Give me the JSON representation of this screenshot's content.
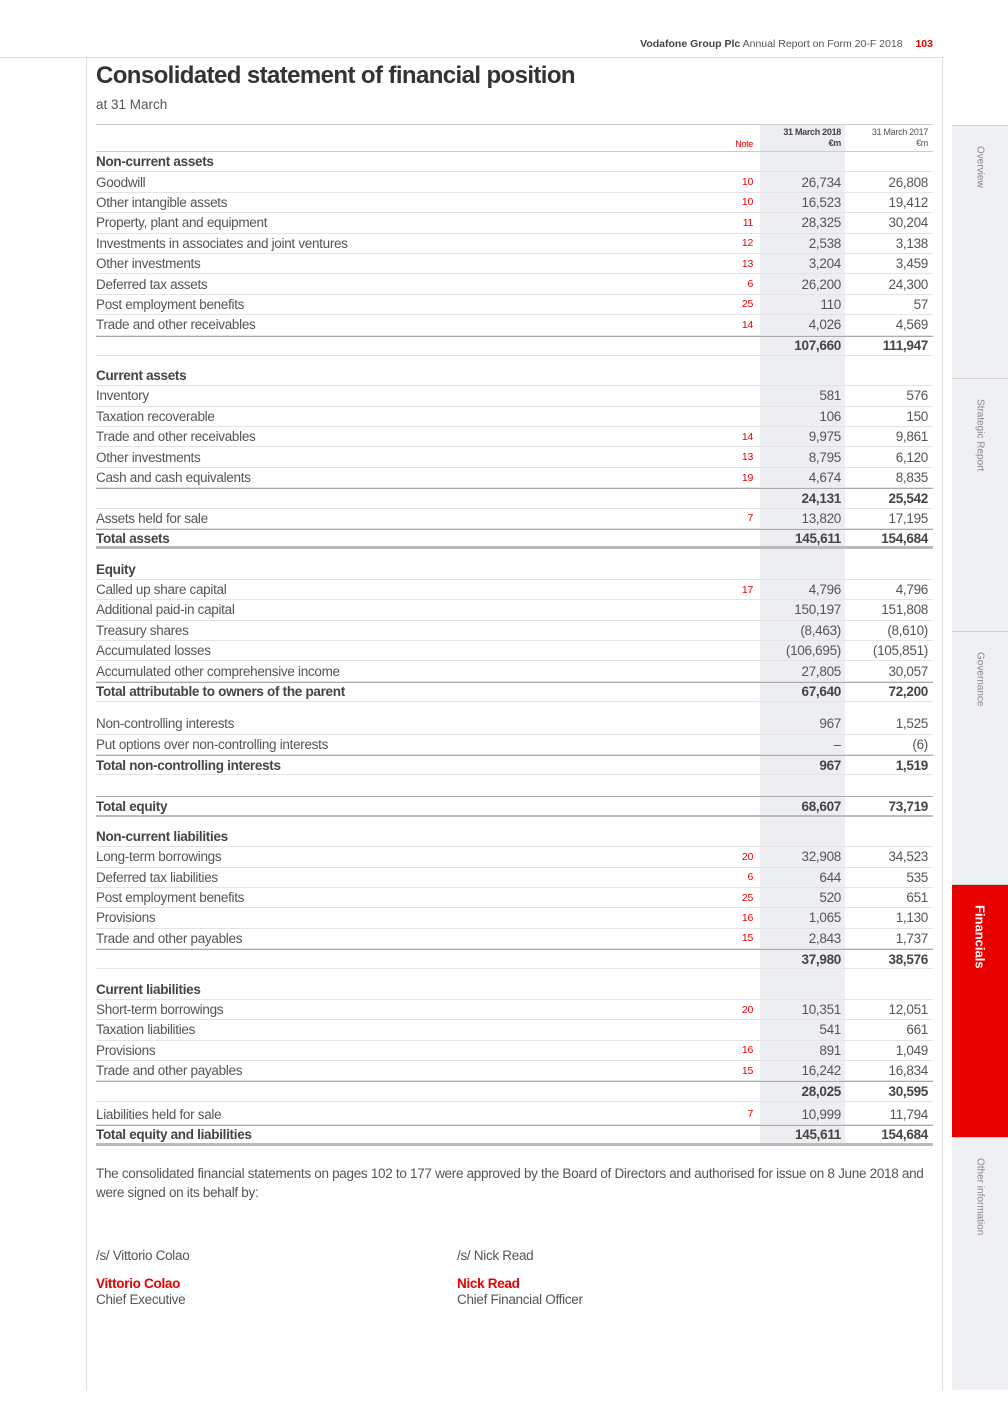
{
  "running_head": {
    "company": "Vodafone Group Plc",
    "report": "Annual Report on Form 20-F 2018",
    "page": "103"
  },
  "title": "Consolidated statement of financial position",
  "subtitle": "at 31 March",
  "columns": {
    "note": "Note",
    "y2018": "31 March 2018",
    "y2017": "31 March 2017",
    "unit": "€m"
  },
  "sections": [
    {
      "heading": "Non-current assets",
      "rows": [
        {
          "label": "Goodwill",
          "note": "10",
          "y2018": "26,734",
          "y2017": "26,808"
        },
        {
          "label": "Other intangible assets",
          "note": "10",
          "y2018": "16,523",
          "y2017": "19,412"
        },
        {
          "label": "Property, plant and equipment",
          "note": "11",
          "y2018": "28,325",
          "y2017": "30,204"
        },
        {
          "label": "Investments in associates and joint ventures",
          "note": "12",
          "y2018": "2,538",
          "y2017": "3,138"
        },
        {
          "label": "Other investments",
          "note": "13",
          "y2018": "3,204",
          "y2017": "3,459"
        },
        {
          "label": "Deferred tax assets",
          "note": "6",
          "y2018": "26,200",
          "y2017": "24,300"
        },
        {
          "label": "Post employment benefits",
          "note": "25",
          "y2018": "110",
          "y2017": "57"
        },
        {
          "label": "Trade and other receivables",
          "note": "14",
          "y2018": "4,026",
          "y2017": "4,569"
        }
      ],
      "total": {
        "label": "",
        "y2018": "107,660",
        "y2017": "111,947"
      }
    },
    {
      "heading": "Current assets",
      "rows": [
        {
          "label": "Inventory",
          "note": "",
          "y2018": "581",
          "y2017": "576"
        },
        {
          "label": "Taxation recoverable",
          "note": "",
          "y2018": "106",
          "y2017": "150"
        },
        {
          "label": "Trade and other receivables",
          "note": "14",
          "y2018": "9,975",
          "y2017": "9,861"
        },
        {
          "label": "Other investments",
          "note": "13",
          "y2018": "8,795",
          "y2017": "6,120"
        },
        {
          "label": "Cash and cash equivalents",
          "note": "19",
          "y2018": "4,674",
          "y2017": "8,835"
        }
      ],
      "total": {
        "label": "",
        "y2018": "24,131",
        "y2017": "25,542"
      }
    },
    {
      "heading": "",
      "rows": [
        {
          "label": "Assets held for sale",
          "note": "7",
          "y2018": "13,820",
          "y2017": "17,195"
        }
      ],
      "total": {
        "label": "Total assets",
        "y2018": "145,611",
        "y2017": "154,684"
      }
    },
    {
      "heading": "Equity",
      "rows": [
        {
          "label": "Called up share capital",
          "note": "17",
          "y2018": "4,796",
          "y2017": "4,796"
        },
        {
          "label": "Additional paid-in capital",
          "note": "",
          "y2018": "150,197",
          "y2017": "151,808"
        },
        {
          "label": "Treasury shares",
          "note": "",
          "y2018": "(8,463)",
          "y2017": "(8,610)"
        },
        {
          "label": "Accumulated losses",
          "note": "",
          "y2018": "(106,695)",
          "y2017": "(105,851)"
        },
        {
          "label": "Accumulated other comprehensive income",
          "note": "",
          "y2018": "27,805",
          "y2017": "30,057"
        }
      ],
      "total": {
        "label": "Total attributable to owners of the parent",
        "y2018": "67,640",
        "y2017": "72,200"
      }
    },
    {
      "heading": "",
      "rows": [
        {
          "label": "Non-controlling interests",
          "note": "",
          "y2018": "967",
          "y2017": "1,525"
        },
        {
          "label": "Put options over non-controlling interests",
          "note": "",
          "y2018": "–",
          "y2017": "(6)"
        }
      ],
      "total": {
        "label": "Total non-controlling interests",
        "y2018": "967",
        "y2017": "1,519"
      }
    },
    {
      "heading": "",
      "rows": [],
      "total": {
        "label": "Total equity",
        "y2018": "68,607",
        "y2017": "73,719"
      }
    },
    {
      "heading": "Non-current liabilities",
      "rows": [
        {
          "label": "Long-term borrowings",
          "note": "20",
          "y2018": "32,908",
          "y2017": "34,523"
        },
        {
          "label": "Deferred tax liabilities",
          "note": "6",
          "y2018": "644",
          "y2017": "535"
        },
        {
          "label": "Post employment benefits",
          "note": "25",
          "y2018": "520",
          "y2017": "651"
        },
        {
          "label": "Provisions",
          "note": "16",
          "y2018": "1,065",
          "y2017": "1,130"
        },
        {
          "label": "Trade and other payables",
          "note": "15",
          "y2018": "2,843",
          "y2017": "1,737"
        }
      ],
      "total": {
        "label": "",
        "y2018": "37,980",
        "y2017": "38,576"
      }
    },
    {
      "heading": "Current liabilities",
      "rows": [
        {
          "label": "Short-term borrowings",
          "note": "20",
          "y2018": "10,351",
          "y2017": "12,051"
        },
        {
          "label": "Taxation liabilities",
          "note": "",
          "y2018": "541",
          "y2017": "661"
        },
        {
          "label": "Provisions",
          "note": "16",
          "y2018": "891",
          "y2017": "1,049"
        },
        {
          "label": "Trade and other payables",
          "note": "15",
          "y2018": "16,242",
          "y2017": "16,834"
        }
      ],
      "total": {
        "label": "",
        "y2018": "28,025",
        "y2017": "30,595"
      }
    },
    {
      "heading": "",
      "rows": [
        {
          "label": "Liabilities held for sale",
          "note": "7",
          "y2018": "10,999",
          "y2017": "11,794"
        }
      ],
      "total": {
        "label": "Total equity and liabilities",
        "y2018": "145,611",
        "y2017": "154,684"
      }
    }
  ],
  "footnote": "The consolidated financial statements on pages 102 to 177 were approved by the Board of Directors and authorised for issue on 8 June 2018 and were signed on its behalf by:",
  "signatories": [
    {
      "signature": "/s/ Vittorio Colao",
      "name": "Vittorio Colao",
      "role": "Chief Executive"
    },
    {
      "signature": "/s/ Nick Read",
      "name": "Nick Read",
      "role": "Chief Financial Officer"
    }
  ],
  "side_tabs": [
    {
      "label": "Overview",
      "active": false
    },
    {
      "label": "Strategic Report",
      "active": false
    },
    {
      "label": "Governance",
      "active": false
    },
    {
      "label": "Financials",
      "active": true
    },
    {
      "label": "Other information",
      "active": false
    }
  ],
  "colors": {
    "accent": "#e60000",
    "shade": "#eceef2"
  }
}
